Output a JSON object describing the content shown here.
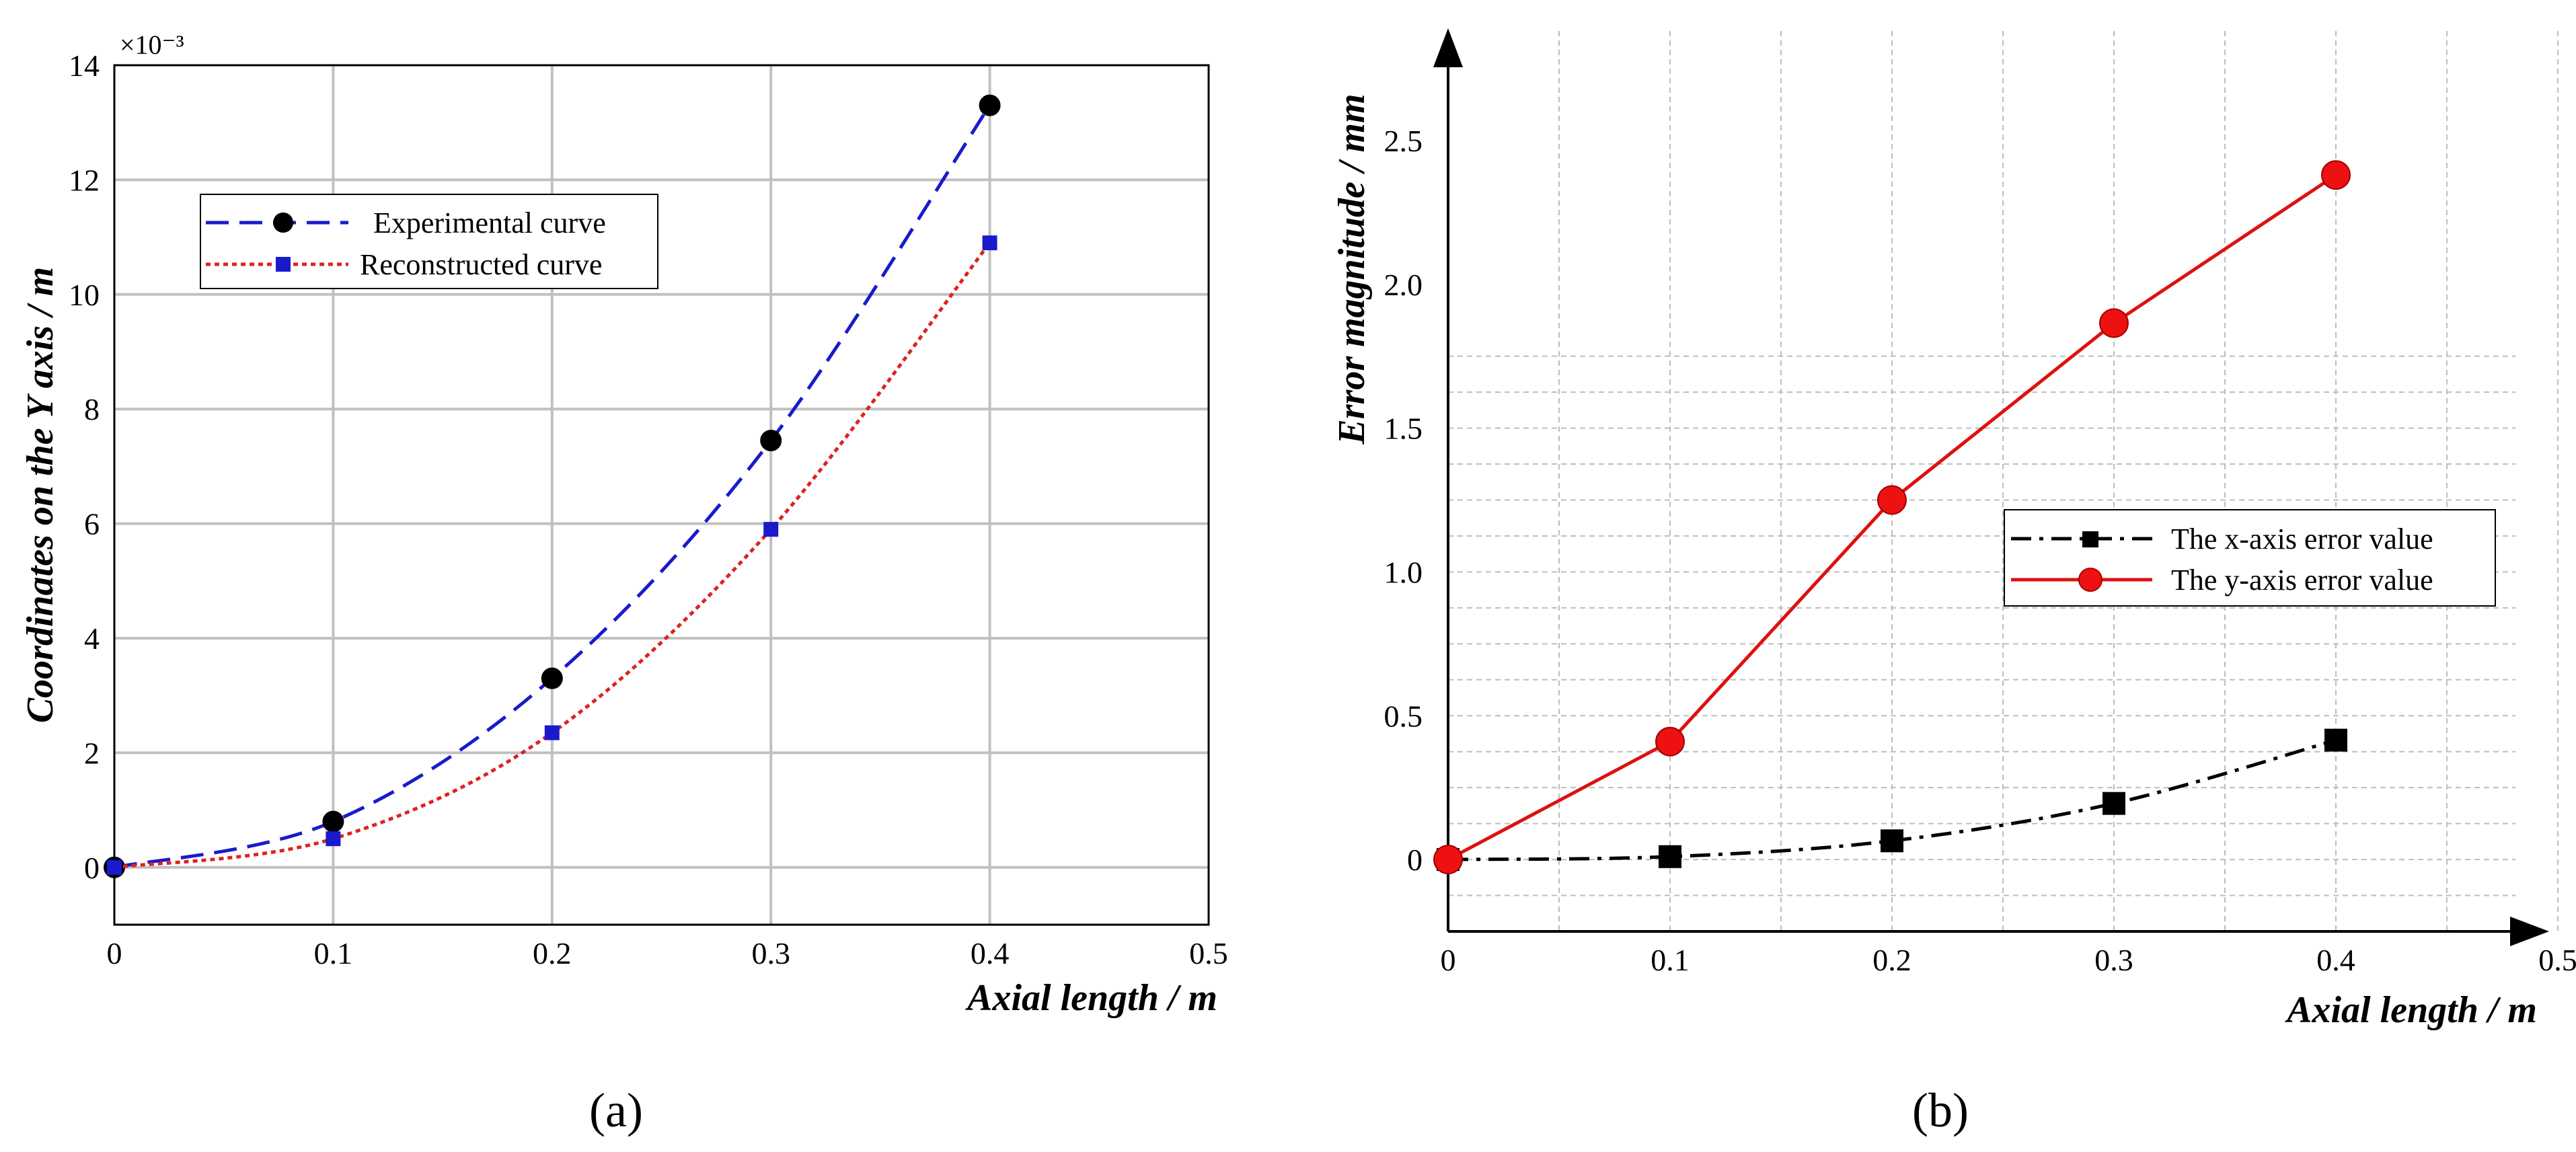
{
  "charts": [
    {
      "id": "a",
      "panel_label": "(a)",
      "chart_data": {
        "type": "line",
        "title": "",
        "xlabel": "Axial length / m",
        "ylabel": "Coordinates on the Y axis / m",
        "y_multiplier": "×10⁻³",
        "xlim": [
          0,
          0.5
        ],
        "ylim": [
          -1,
          14
        ],
        "x_ticks": [
          0,
          0.1,
          0.2,
          0.3,
          0.4,
          0.5
        ],
        "x_tick_labels": [
          "0",
          "0.1",
          "0.2",
          "0.3",
          "0.4",
          "0.5"
        ],
        "y_ticks": [
          0,
          2,
          4,
          6,
          8,
          10,
          12,
          14
        ],
        "y_tick_labels": [
          "0",
          "2",
          "4",
          "6",
          "8",
          "10",
          "12",
          "14"
        ],
        "grid": true,
        "legend_position": "upper-left",
        "series": [
          {
            "name": "Experimental curve",
            "color": "#1a1acc",
            "marker_color": "#000000",
            "marker": "circle",
            "line_style": "dashed",
            "x": [
              0,
              0.1,
              0.2,
              0.3,
              0.4
            ],
            "y": [
              0,
              0.8,
              3.3,
              7.45,
              13.3
            ]
          },
          {
            "name": "Reconstructed curve",
            "color": "#dd2222",
            "marker_color": "#1a1acc",
            "marker": "square",
            "line_style": "dotted",
            "x": [
              0,
              0.1,
              0.2,
              0.3,
              0.4
            ],
            "y": [
              0,
              0.5,
              2.35,
              5.9,
              10.9
            ]
          }
        ]
      }
    },
    {
      "id": "b",
      "panel_label": "(b)",
      "chart_data": {
        "type": "line",
        "title": "",
        "xlabel": "Axial length / m",
        "ylabel": "Error magnitude / mm",
        "xlim": [
          0,
          0.5
        ],
        "ylim": [
          -0.25,
          2.75
        ],
        "x_ticks": [
          0,
          0.1,
          0.2,
          0.3,
          0.4,
          0.5
        ],
        "x_tick_labels": [
          "0",
          "0.1",
          "0.2",
          "0.3",
          "0.4",
          "0.5"
        ],
        "y_ticks": [
          0,
          0.5,
          1.0,
          1.5,
          2.0,
          2.5
        ],
        "y_tick_labels": [
          "0",
          "0.5",
          "1.0",
          "1.5",
          "2.0",
          "2.5"
        ],
        "grid": true,
        "minor_grid": true,
        "legend_position": "center-right",
        "series": [
          {
            "name": "The x-axis error value",
            "color": "#000000",
            "marker_color": "#000000",
            "marker": "square",
            "line_style": "dashdot",
            "x": [
              0,
              0.1,
              0.2,
              0.3,
              0.4
            ],
            "y": [
              0,
              0.01,
              0.065,
              0.195,
              0.415
            ]
          },
          {
            "name": "The y-axis error value",
            "color": "#dd1111",
            "marker_color": "#ee1111",
            "marker": "circle",
            "line_style": "solid",
            "x": [
              0,
              0.1,
              0.2,
              0.3,
              0.4
            ],
            "y": [
              0,
              0.41,
              1.25,
              1.865,
              2.38
            ]
          }
        ]
      }
    }
  ]
}
